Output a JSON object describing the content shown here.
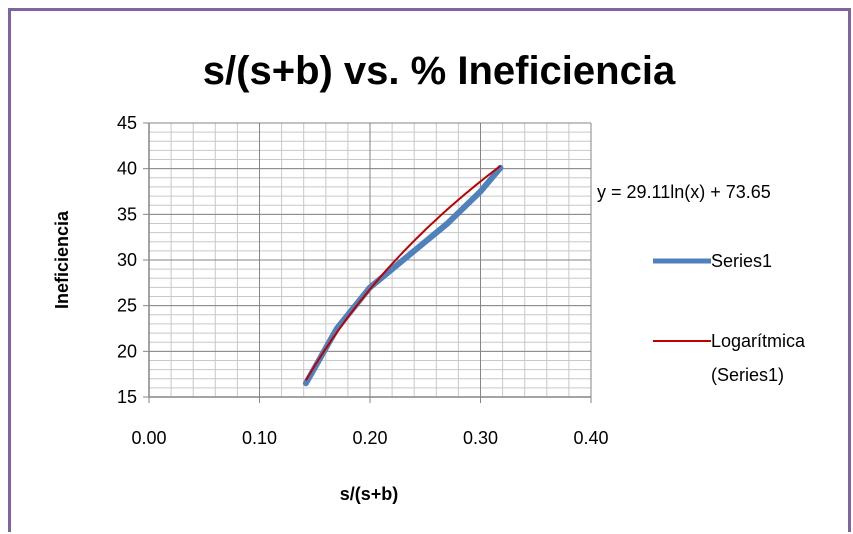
{
  "chart_data": {
    "type": "line",
    "title": "s/(s+b) vs. % Ineficiencia",
    "xlabel": "s/(s+b)",
    "ylabel": "Ineficiencia",
    "xlim": [
      0.0,
      0.4
    ],
    "ylim": [
      15,
      45
    ],
    "x_ticks": [
      "0.00",
      "0.10",
      "0.20",
      "0.30",
      "0.40"
    ],
    "y_ticks": [
      "15",
      "20",
      "25",
      "30",
      "35",
      "40",
      "45"
    ],
    "grid": true,
    "legend_position": "right",
    "series": [
      {
        "name": "Series1",
        "color": "#4f81bd",
        "x": [
          0.142,
          0.17,
          0.2,
          0.235,
          0.27,
          0.3,
          0.318
        ],
        "y": [
          16.5,
          22.5,
          27.0,
          30.5,
          34.0,
          37.5,
          40.1
        ]
      }
    ],
    "trendline": {
      "name": "Logarítmica (Series1)",
      "legend_lines": [
        "Logarítmica",
        "(Series1)"
      ],
      "color": "#c00000",
      "equation": "y = 29.11ln(x) + 73.65",
      "a": 29.11,
      "b": 73.65,
      "x_range": [
        0.142,
        0.318
      ]
    }
  }
}
